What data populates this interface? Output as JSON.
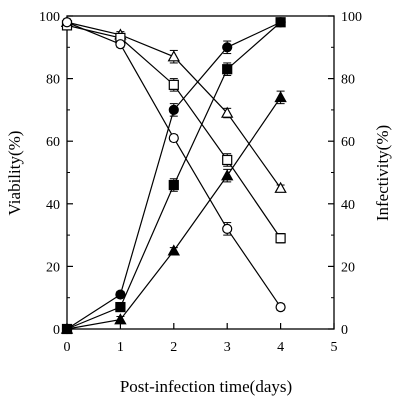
{
  "chart_data": {
    "type": "line",
    "title": "",
    "xlabel": "Post-infection time(days)",
    "ylabel_left": "Viability(%)",
    "ylabel_right": "Infectivity(%)",
    "xlim": [
      0,
      5
    ],
    "ylim": [
      0,
      100
    ],
    "xticks": [
      "0",
      "1",
      "2",
      "3",
      "4",
      "5"
    ],
    "yticks": [
      "0",
      "20",
      "40",
      "60",
      "80",
      "100"
    ],
    "grid": false,
    "legend": "none",
    "x": [
      0,
      1,
      2,
      3,
      4
    ],
    "series": [
      {
        "marker": "open-triangle",
        "axis": "left",
        "values": [
          98,
          94,
          87,
          69,
          45
        ],
        "errors": [
          1,
          1,
          2,
          1.5,
          1
        ]
      },
      {
        "marker": "open-square",
        "axis": "left",
        "values": [
          97,
          93,
          78,
          54,
          29
        ],
        "errors": [
          1,
          1,
          2,
          2,
          1.5
        ]
      },
      {
        "marker": "open-circle",
        "axis": "left",
        "values": [
          98,
          91,
          61,
          32,
          7
        ],
        "errors": [
          1,
          1,
          1,
          2,
          1
        ]
      },
      {
        "marker": "filled-circle",
        "axis": "right",
        "values": [
          0,
          11,
          70,
          90,
          98
        ],
        "errors": [
          0.5,
          1,
          2,
          2,
          1
        ]
      },
      {
        "marker": "filled-square",
        "axis": "right",
        "values": [
          0,
          7,
          46,
          83,
          98
        ],
        "errors": [
          0.5,
          1,
          2,
          2,
          1
        ]
      },
      {
        "marker": "filled-triangle",
        "axis": "right",
        "values": [
          0,
          3,
          25,
          49,
          74
        ],
        "errors": [
          0.5,
          1,
          1,
          2,
          2
        ]
      }
    ]
  }
}
